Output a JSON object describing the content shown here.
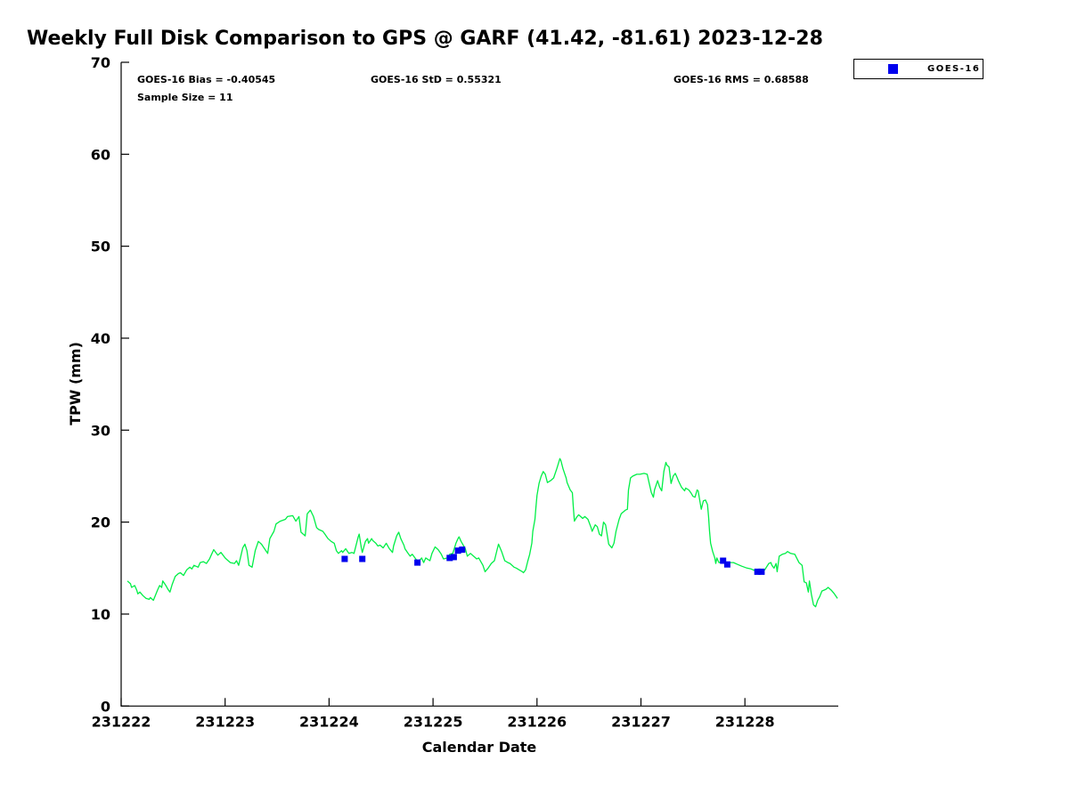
{
  "title": "Weekly Full Disk Comparison to GPS @ GARF (41.42, -81.61) 2023-12-28",
  "stats": {
    "bias": "GOES-16 Bias = -0.40545",
    "std": "GOES-16 StD = 0.55321",
    "rms": "GOES-16 RMS = 0.68588",
    "sample_size": "Sample Size = 11"
  },
  "legend": {
    "entries": [
      {
        "label": "GOES-16",
        "marker": "square-icon",
        "color": "#0000ee"
      }
    ],
    "position": "top-right-outside"
  },
  "colors": {
    "background": "#ffffff",
    "axis": "#000000",
    "gps_line": "#00ef46",
    "goes16_marker": "#0000ee",
    "text": "#000000"
  },
  "chart_data": {
    "type": "line",
    "title": "Weekly Full Disk Comparison to GPS @ GARF (41.42, -81.61) 2023-12-28",
    "xlabel": "Calendar Date",
    "ylabel": "TPW (mm)",
    "x_tick_labels": [
      "231222",
      "231223",
      "231224",
      "231225",
      "231226",
      "231227",
      "231228"
    ],
    "y_ticks": [
      0,
      10,
      20,
      30,
      40,
      50,
      60,
      70
    ],
    "ylim": [
      0,
      70
    ],
    "xlim_days_after_first_tick": [
      0,
      6.9
    ],
    "grid": false,
    "legend_position": "top-right-outside",
    "x_unit": "days after 231222 (fractional)",
    "series": [
      {
        "name": "GPS TPW",
        "type": "line",
        "color": "#00ef46",
        "points": [
          [
            0.06,
            13.6
          ],
          [
            0.09,
            13.3
          ],
          [
            0.1,
            12.9
          ],
          [
            0.13,
            13.1
          ],
          [
            0.15,
            12.6
          ],
          [
            0.16,
            12.2
          ],
          [
            0.18,
            12.4
          ],
          [
            0.21,
            12.0
          ],
          [
            0.24,
            11.7
          ],
          [
            0.27,
            11.6
          ],
          [
            0.28,
            11.8
          ],
          [
            0.31,
            11.5
          ],
          [
            0.35,
            12.6
          ],
          [
            0.37,
            13.1
          ],
          [
            0.39,
            12.9
          ],
          [
            0.4,
            13.6
          ],
          [
            0.43,
            13.1
          ],
          [
            0.45,
            12.7
          ],
          [
            0.47,
            12.4
          ],
          [
            0.49,
            13.2
          ],
          [
            0.52,
            14.1
          ],
          [
            0.55,
            14.4
          ],
          [
            0.57,
            14.5
          ],
          [
            0.6,
            14.2
          ],
          [
            0.63,
            14.8
          ],
          [
            0.66,
            15.1
          ],
          [
            0.68,
            14.9
          ],
          [
            0.7,
            15.3
          ],
          [
            0.74,
            15.1
          ],
          [
            0.76,
            15.6
          ],
          [
            0.79,
            15.7
          ],
          [
            0.82,
            15.5
          ],
          [
            0.85,
            16.0
          ],
          [
            0.87,
            16.5
          ],
          [
            0.89,
            17.0
          ],
          [
            0.93,
            16.4
          ],
          [
            0.96,
            16.7
          ],
          [
            1.0,
            16.1
          ],
          [
            1.05,
            15.6
          ],
          [
            1.09,
            15.5
          ],
          [
            1.11,
            15.8
          ],
          [
            1.13,
            15.3
          ],
          [
            1.17,
            17.2
          ],
          [
            1.19,
            17.6
          ],
          [
            1.21,
            16.9
          ],
          [
            1.23,
            15.3
          ],
          [
            1.26,
            15.1
          ],
          [
            1.29,
            16.9
          ],
          [
            1.32,
            17.9
          ],
          [
            1.35,
            17.6
          ],
          [
            1.38,
            17.1
          ],
          [
            1.41,
            16.6
          ],
          [
            1.43,
            18.2
          ],
          [
            1.47,
            19.0
          ],
          [
            1.49,
            19.8
          ],
          [
            1.53,
            20.1
          ],
          [
            1.58,
            20.3
          ],
          [
            1.6,
            20.6
          ],
          [
            1.65,
            20.7
          ],
          [
            1.68,
            20.1
          ],
          [
            1.71,
            20.6
          ],
          [
            1.73,
            18.9
          ],
          [
            1.77,
            18.5
          ],
          [
            1.79,
            20.9
          ],
          [
            1.82,
            21.3
          ],
          [
            1.85,
            20.6
          ],
          [
            1.88,
            19.4
          ],
          [
            1.9,
            19.2
          ],
          [
            1.94,
            19.0
          ],
          [
            1.96,
            18.7
          ],
          [
            1.99,
            18.2
          ],
          [
            2.02,
            17.9
          ],
          [
            2.05,
            17.7
          ],
          [
            2.07,
            16.9
          ],
          [
            2.09,
            16.6
          ],
          [
            2.12,
            16.9
          ],
          [
            2.13,
            16.7
          ],
          [
            2.16,
            17.1
          ],
          [
            2.19,
            16.6
          ],
          [
            2.22,
            16.7
          ],
          [
            2.24,
            16.6
          ],
          [
            2.28,
            18.4
          ],
          [
            2.29,
            18.7
          ],
          [
            2.31,
            17.2
          ],
          [
            2.32,
            16.7
          ],
          [
            2.35,
            17.9
          ],
          [
            2.37,
            18.2
          ],
          [
            2.38,
            17.7
          ],
          [
            2.41,
            18.2
          ],
          [
            2.42,
            18.0
          ],
          [
            2.45,
            17.7
          ],
          [
            2.47,
            17.4
          ],
          [
            2.49,
            17.5
          ],
          [
            2.52,
            17.2
          ],
          [
            2.55,
            17.7
          ],
          [
            2.58,
            17.1
          ],
          [
            2.61,
            16.7
          ],
          [
            2.62,
            17.4
          ],
          [
            2.65,
            18.5
          ],
          [
            2.67,
            18.9
          ],
          [
            2.69,
            18.2
          ],
          [
            2.72,
            17.5
          ],
          [
            2.73,
            17.1
          ],
          [
            2.76,
            16.6
          ],
          [
            2.78,
            16.3
          ],
          [
            2.8,
            16.5
          ],
          [
            2.84,
            15.9
          ],
          [
            2.86,
            15.7
          ],
          [
            2.89,
            16.1
          ],
          [
            2.91,
            15.6
          ],
          [
            2.93,
            16.1
          ],
          [
            2.97,
            15.8
          ],
          [
            2.99,
            16.6
          ],
          [
            3.02,
            17.3
          ],
          [
            3.05,
            17.0
          ],
          [
            3.08,
            16.5
          ],
          [
            3.1,
            16.0
          ],
          [
            3.14,
            16.1
          ],
          [
            3.16,
            16.5
          ],
          [
            3.19,
            16.6
          ],
          [
            3.22,
            17.7
          ],
          [
            3.24,
            18.2
          ],
          [
            3.25,
            18.4
          ],
          [
            3.27,
            17.9
          ],
          [
            3.31,
            17.1
          ],
          [
            3.33,
            16.3
          ],
          [
            3.36,
            16.6
          ],
          [
            3.39,
            16.3
          ],
          [
            3.42,
            16.0
          ],
          [
            3.44,
            16.1
          ],
          [
            3.48,
            15.3
          ],
          [
            3.5,
            14.6
          ],
          [
            3.53,
            15.0
          ],
          [
            3.56,
            15.5
          ],
          [
            3.59,
            15.8
          ],
          [
            3.62,
            17.2
          ],
          [
            3.63,
            17.6
          ],
          [
            3.66,
            16.8
          ],
          [
            3.69,
            15.8
          ],
          [
            3.72,
            15.6
          ],
          [
            3.74,
            15.5
          ],
          [
            3.78,
            15.1
          ],
          [
            3.8,
            15.0
          ],
          [
            3.83,
            14.8
          ],
          [
            3.86,
            14.6
          ],
          [
            3.87,
            14.5
          ],
          [
            3.89,
            14.8
          ],
          [
            3.91,
            15.7
          ],
          [
            3.93,
            16.5
          ],
          [
            3.95,
            17.7
          ],
          [
            3.96,
            19.0
          ],
          [
            3.98,
            20.3
          ],
          [
            3.99,
            21.6
          ],
          [
            4.0,
            22.9
          ],
          [
            4.02,
            24.2
          ],
          [
            4.04,
            25.0
          ],
          [
            4.06,
            25.5
          ],
          [
            4.08,
            25.2
          ],
          [
            4.1,
            24.3
          ],
          [
            4.13,
            24.5
          ],
          [
            4.16,
            24.8
          ],
          [
            4.19,
            25.8
          ],
          [
            4.22,
            26.9
          ],
          [
            4.23,
            26.7
          ],
          [
            4.25,
            25.8
          ],
          [
            4.28,
            24.8
          ],
          [
            4.29,
            24.3
          ],
          [
            4.32,
            23.5
          ],
          [
            4.34,
            23.2
          ],
          [
            4.35,
            21.6
          ],
          [
            4.36,
            20.1
          ],
          [
            4.38,
            20.5
          ],
          [
            4.4,
            20.8
          ],
          [
            4.42,
            20.6
          ],
          [
            4.44,
            20.4
          ],
          [
            4.46,
            20.6
          ],
          [
            4.49,
            20.3
          ],
          [
            4.52,
            19.4
          ],
          [
            4.53,
            19.0
          ],
          [
            4.56,
            19.7
          ],
          [
            4.58,
            19.5
          ],
          [
            4.6,
            18.7
          ],
          [
            4.62,
            18.5
          ],
          [
            4.64,
            20.0
          ],
          [
            4.66,
            19.7
          ],
          [
            4.69,
            17.6
          ],
          [
            4.72,
            17.2
          ],
          [
            4.74,
            17.7
          ],
          [
            4.76,
            19.0
          ],
          [
            4.79,
            20.3
          ],
          [
            4.81,
            20.9
          ],
          [
            4.85,
            21.3
          ],
          [
            4.87,
            21.4
          ],
          [
            4.88,
            23.5
          ],
          [
            4.9,
            24.8
          ],
          [
            4.92,
            25.0
          ],
          [
            4.96,
            25.2
          ],
          [
            4.99,
            25.2
          ],
          [
            5.03,
            25.3
          ],
          [
            5.06,
            25.2
          ],
          [
            5.08,
            24.2
          ],
          [
            5.1,
            23.2
          ],
          [
            5.12,
            22.7
          ],
          [
            5.13,
            23.5
          ],
          [
            5.16,
            24.5
          ],
          [
            5.18,
            23.8
          ],
          [
            5.2,
            23.4
          ],
          [
            5.22,
            25.5
          ],
          [
            5.24,
            26.5
          ],
          [
            5.25,
            26.2
          ],
          [
            5.27,
            26.0
          ],
          [
            5.29,
            24.2
          ],
          [
            5.31,
            25.0
          ],
          [
            5.33,
            25.3
          ],
          [
            5.35,
            24.8
          ],
          [
            5.36,
            24.5
          ],
          [
            5.39,
            23.8
          ],
          [
            5.42,
            23.4
          ],
          [
            5.43,
            23.7
          ],
          [
            5.46,
            23.5
          ],
          [
            5.48,
            23.2
          ],
          [
            5.5,
            22.8
          ],
          [
            5.52,
            22.7
          ],
          [
            5.54,
            23.5
          ],
          [
            5.55,
            23.4
          ],
          [
            5.58,
            21.4
          ],
          [
            5.6,
            22.3
          ],
          [
            5.62,
            22.4
          ],
          [
            5.64,
            21.9
          ],
          [
            5.65,
            20.6
          ],
          [
            5.66,
            19.0
          ],
          [
            5.67,
            17.7
          ],
          [
            5.69,
            16.8
          ],
          [
            5.71,
            16.1
          ],
          [
            5.72,
            15.5
          ],
          [
            5.73,
            16.1
          ],
          [
            5.75,
            15.6
          ],
          [
            5.78,
            15.7
          ],
          [
            5.82,
            15.5
          ],
          [
            5.84,
            15.6
          ],
          [
            5.89,
            15.6
          ],
          [
            5.93,
            15.4
          ],
          [
            5.97,
            15.2
          ],
          [
            6.02,
            15.0
          ],
          [
            6.06,
            14.9
          ],
          [
            6.1,
            14.7
          ],
          [
            6.14,
            14.7
          ],
          [
            6.19,
            14.8
          ],
          [
            6.23,
            15.5
          ],
          [
            6.25,
            15.6
          ],
          [
            6.26,
            15.3
          ],
          [
            6.28,
            15.0
          ],
          [
            6.3,
            15.5
          ],
          [
            6.31,
            14.6
          ],
          [
            6.33,
            16.3
          ],
          [
            6.36,
            16.5
          ],
          [
            6.39,
            16.6
          ],
          [
            6.41,
            16.8
          ],
          [
            6.44,
            16.6
          ],
          [
            6.48,
            16.5
          ],
          [
            6.52,
            15.6
          ],
          [
            6.55,
            15.3
          ],
          [
            6.57,
            13.5
          ],
          [
            6.59,
            13.4
          ],
          [
            6.61,
            12.4
          ],
          [
            6.62,
            13.6
          ],
          [
            6.64,
            12.1
          ],
          [
            6.66,
            11.0
          ],
          [
            6.68,
            10.8
          ],
          [
            6.7,
            11.5
          ],
          [
            6.72,
            11.9
          ],
          [
            6.74,
            12.5
          ],
          [
            6.78,
            12.7
          ],
          [
            6.8,
            12.9
          ],
          [
            6.83,
            12.6
          ],
          [
            6.86,
            12.2
          ],
          [
            6.89,
            11.7
          ]
        ]
      },
      {
        "name": "GOES-16",
        "type": "scatter",
        "marker": "square",
        "color": "#0000ee",
        "points": [
          [
            2.15,
            16.0
          ],
          [
            2.32,
            16.0
          ],
          [
            2.85,
            15.6
          ],
          [
            3.16,
            16.1
          ],
          [
            3.2,
            16.2
          ],
          [
            3.24,
            16.9
          ],
          [
            3.28,
            17.0
          ],
          [
            5.79,
            15.8
          ],
          [
            5.83,
            15.4
          ],
          [
            6.12,
            14.6
          ],
          [
            6.16,
            14.6
          ]
        ]
      }
    ]
  }
}
